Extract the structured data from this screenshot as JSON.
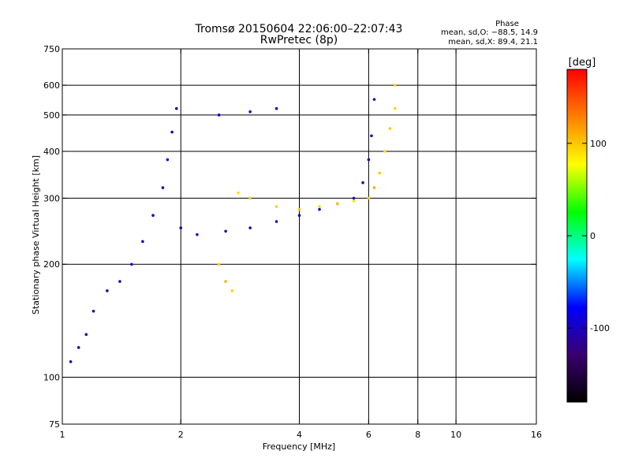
{
  "chart_data": {
    "type": "scatter",
    "title": "Tromsø 20150604 22:06:00–22:07:43",
    "subtitle": "RwPretec (8p)",
    "xlabel": "Frequency [MHz]",
    "ylabel": "Stationary phase Virtual Height [km]",
    "x_scale": "log",
    "y_scale": "log",
    "xlim": [
      1,
      16
    ],
    "ylim": [
      75,
      750
    ],
    "x_ticks": [
      1,
      2,
      4,
      6,
      8,
      10,
      16
    ],
    "y_ticks": [
      75,
      100,
      200,
      300,
      400,
      500,
      600,
      750
    ],
    "grid": true,
    "stats": {
      "heading": "Phase",
      "line1": "mean, sd,O: −88.5, 14.9",
      "line2": "mean, sd,X: 89.4, 21.1"
    },
    "colorbar": {
      "label": "[deg]",
      "ticks": [
        100,
        0,
        -100
      ],
      "range": [
        -180,
        180
      ],
      "colors": [
        "#000000",
        "#3a0070",
        "#0000ff",
        "#00ffff",
        "#00ff00",
        "#ffff00",
        "#ff8000",
        "#ff0000"
      ]
    },
    "series": [
      {
        "trace": "O",
        "points": [
          [
            1.05,
            110,
            -100
          ],
          [
            1.1,
            120,
            -95
          ],
          [
            1.15,
            130,
            -105
          ],
          [
            1.2,
            150,
            -100
          ],
          [
            1.3,
            170,
            -110
          ],
          [
            1.4,
            180,
            -95
          ],
          [
            1.5,
            200,
            -100
          ],
          [
            1.6,
            230,
            -105
          ],
          [
            1.7,
            270,
            -90
          ],
          [
            1.8,
            320,
            -100
          ],
          [
            1.85,
            380,
            -95
          ],
          [
            1.9,
            450,
            -100
          ],
          [
            1.95,
            520,
            -105
          ],
          [
            2.0,
            250,
            -100
          ],
          [
            2.2,
            240,
            -100
          ],
          [
            2.6,
            245,
            -100
          ],
          [
            3.0,
            250,
            -100
          ],
          [
            3.5,
            260,
            -100
          ],
          [
            4.0,
            270,
            -100
          ],
          [
            4.5,
            280,
            -100
          ],
          [
            5.0,
            290,
            -100
          ],
          [
            5.5,
            300,
            -100
          ],
          [
            5.8,
            330,
            -100
          ],
          [
            6.0,
            380,
            -100
          ],
          [
            6.1,
            440,
            -100
          ],
          [
            6.2,
            550,
            -100
          ],
          [
            2.5,
            500,
            -80
          ],
          [
            3.0,
            510,
            -90
          ],
          [
            3.5,
            520,
            -100
          ]
        ]
      },
      {
        "trace": "X",
        "points": [
          [
            2.5,
            200,
            100
          ],
          [
            2.6,
            180,
            110
          ],
          [
            2.7,
            170,
            95
          ],
          [
            2.8,
            310,
            90
          ],
          [
            3.0,
            300,
            100
          ],
          [
            3.5,
            285,
            95
          ],
          [
            4.0,
            280,
            100
          ],
          [
            4.5,
            285,
            95
          ],
          [
            5.0,
            290,
            100
          ],
          [
            5.5,
            295,
            90
          ],
          [
            6.0,
            300,
            100
          ],
          [
            6.2,
            320,
            110
          ],
          [
            6.4,
            350,
            100
          ],
          [
            6.6,
            400,
            90
          ],
          [
            6.8,
            460,
            100
          ],
          [
            7.0,
            520,
            95
          ],
          [
            7.0,
            600,
            100
          ]
        ]
      }
    ]
  }
}
